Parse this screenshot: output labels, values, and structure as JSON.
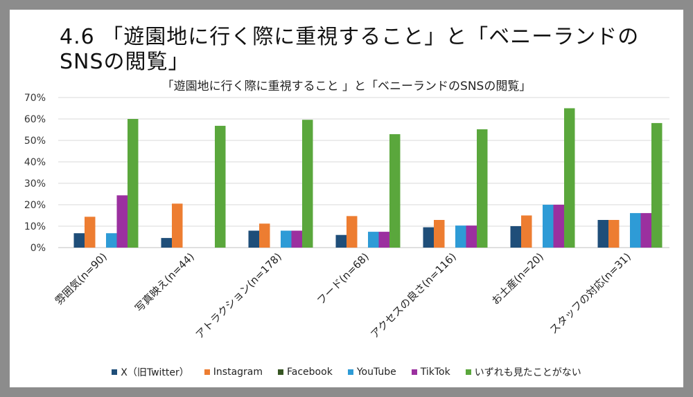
{
  "slide": {
    "title": "4.6 「遊園地に行く際に重視すること」と「ベニーランドのSNSの閲覧」"
  },
  "chart_data": {
    "type": "bar",
    "title": "「遊園地に行く際に重視すること 」と「ベニーランドのSNSの閲覧」",
    "categories": [
      "雰囲気(n=90)",
      "写真映え(n=44)",
      "アトラクション(n=178)",
      "フード(n=68)",
      "アクセスの良さ(n=116)",
      "お土産(n=20)",
      "スタッフの対応(n=31)"
    ],
    "series": [
      {
        "name": "X（旧Twitter）",
        "color": "#1f4e79",
        "values": [
          6.7,
          4.5,
          7.9,
          5.9,
          9.5,
          10.0,
          12.9
        ]
      },
      {
        "name": "Instagram",
        "color": "#ed7d31",
        "values": [
          14.4,
          20.5,
          11.2,
          14.7,
          12.9,
          15.0,
          12.9
        ]
      },
      {
        "name": "Facebook",
        "color": "#375623",
        "values": [
          0,
          0,
          0,
          0,
          0,
          0,
          0
        ]
      },
      {
        "name": "YouTube",
        "color": "#2e9bd6",
        "values": [
          6.7,
          0,
          7.9,
          7.4,
          10.3,
          20.0,
          16.1
        ]
      },
      {
        "name": "TikTok",
        "color": "#9b309f",
        "values": [
          24.4,
          0,
          7.9,
          7.4,
          10.3,
          20.0,
          16.1
        ]
      },
      {
        "name": "いずれも見たことがない",
        "color": "#5aa73c",
        "values": [
          60.0,
          56.8,
          59.6,
          52.9,
          55.2,
          65.0,
          58.1
        ]
      }
    ],
    "ylim": [
      0,
      70
    ],
    "yticks": [
      "0%",
      "10%",
      "20%",
      "30%",
      "40%",
      "50%",
      "60%",
      "70%"
    ],
    "grid": true,
    "legend": "bottom"
  }
}
